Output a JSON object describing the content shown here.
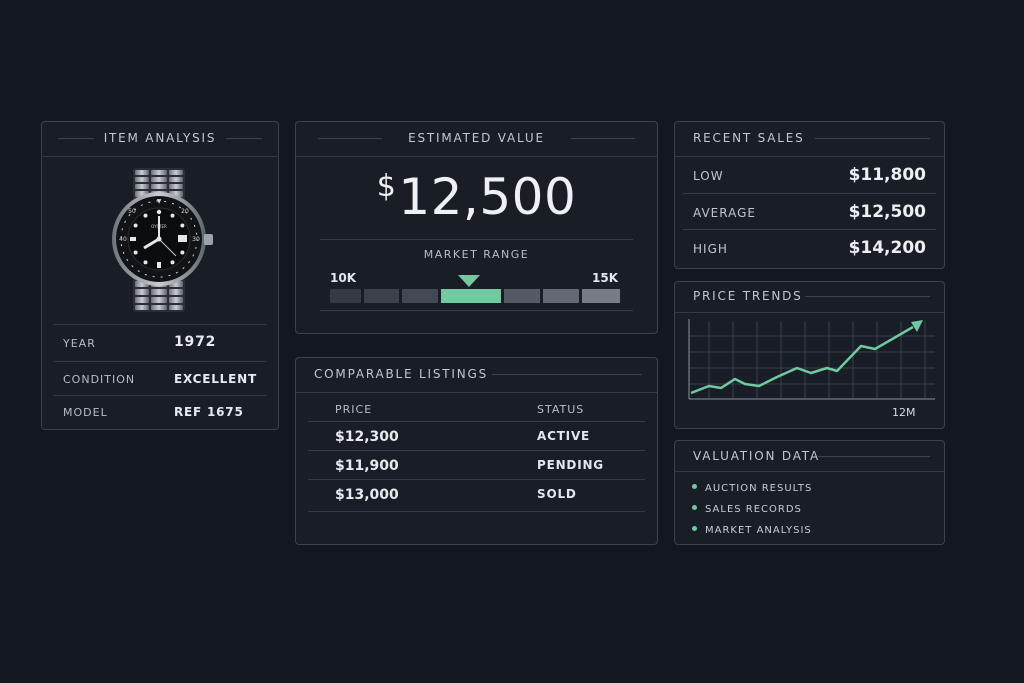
{
  "item_analysis": {
    "title": "ITEM ANALYSIS",
    "image_icon": "wristwatch-icon",
    "rows": [
      {
        "label": "YEAR",
        "value": "1972"
      },
      {
        "label": "CONDITION",
        "value": "EXCELLENT"
      },
      {
        "label": "MODEL",
        "value": "REF 1675"
      }
    ]
  },
  "estimated_value": {
    "title": "ESTIMATED VALUE",
    "currency": "$",
    "amount": "12,500",
    "range_label": "MARKET RANGE",
    "range_low": "10K",
    "range_high": "15K"
  },
  "comparable_listings": {
    "title": "COMPARABLE LISTINGS",
    "columns": [
      "PRICE",
      "STATUS"
    ],
    "rows": [
      {
        "price": "$12,300",
        "status": "ACTIVE"
      },
      {
        "price": "$11,900",
        "status": "PENDING"
      },
      {
        "price": "$13,000",
        "status": "SOLD"
      }
    ]
  },
  "recent_sales": {
    "title": "RECENT SALES",
    "rows": [
      {
        "label": "LOW",
        "value": "$11,800"
      },
      {
        "label": "AVERAGE",
        "value": "$12,500"
      },
      {
        "label": "HIGH",
        "value": "$14,200"
      }
    ]
  },
  "price_trends": {
    "title": "PRICE TRENDS",
    "x_end_label": "12M"
  },
  "valuation_data": {
    "title": "VALUATION DATA",
    "items": [
      "AUCTION RESULTS",
      "SALES RECORDS",
      "MARKET ANALYSIS"
    ]
  },
  "colors": {
    "accent": "#6fcaa0",
    "background": "#131820",
    "panel": "#181d26",
    "border": "#3a4150"
  }
}
